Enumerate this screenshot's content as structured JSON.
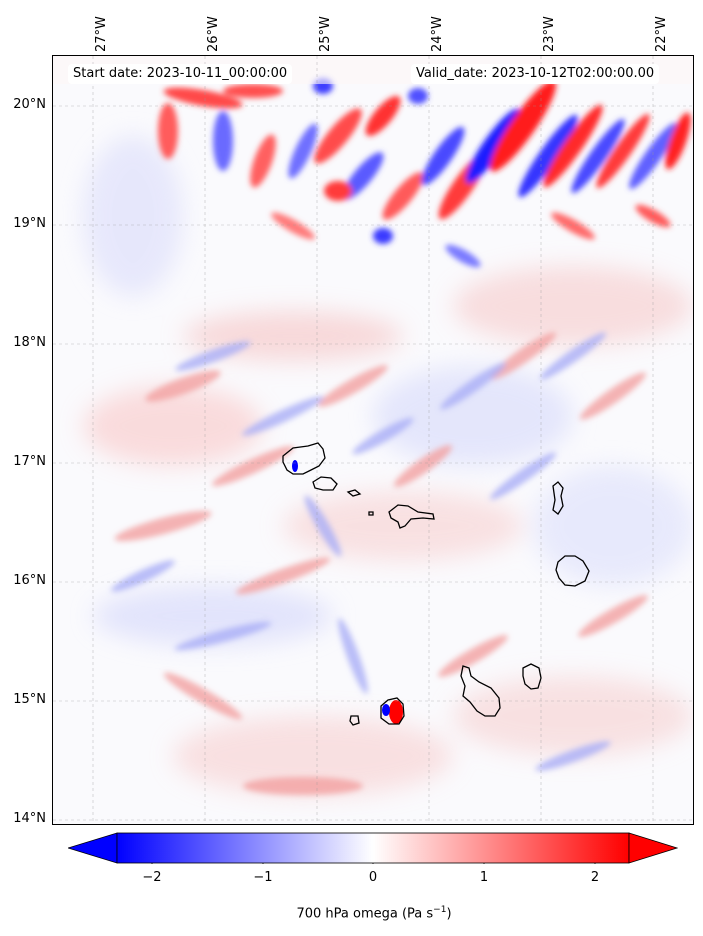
{
  "info": {
    "start_date": "Start date: 2023-10-11_00:00:00",
    "valid_date": "Valid_date: 2023-10-12T02:00:00.00"
  },
  "map": {
    "lon_labels": [
      "27°W",
      "26°W",
      "25°W",
      "24°W",
      "23°W",
      "22°W"
    ],
    "lat_labels": [
      "20°N",
      "19°N",
      "18°N",
      "17°N",
      "16°N",
      "15°N",
      "14°N"
    ],
    "field": "700 hPa omega",
    "colormap": [
      "#0000ff",
      "#ffffff",
      "#ff0000"
    ],
    "coastline_color": "#000000"
  },
  "colorbar": {
    "ticks": [
      "−2",
      "−1",
      "0",
      "1",
      "2"
    ],
    "label_main": "700 hPa omega (Pa s",
    "label_exp": "−1",
    "label_end": ")",
    "range": [
      -2.6,
      2.6
    ],
    "extend": "both"
  }
}
